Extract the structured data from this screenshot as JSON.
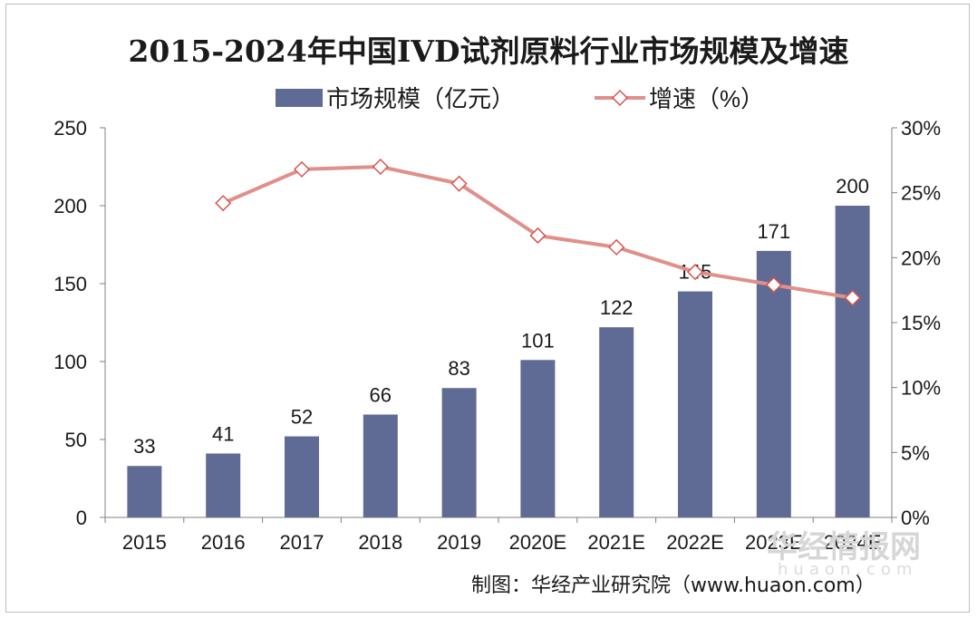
{
  "chart_data": {
    "type": "bar",
    "title": "2015-2024年中国IVD试剂原料行业市场规模及增速",
    "categories": [
      "2015",
      "2016",
      "2017",
      "2018",
      "2019",
      "2020E",
      "2021E",
      "2022E",
      "2023E",
      "2024E"
    ],
    "series": [
      {
        "name": "市场规模（亿元）",
        "type": "bar",
        "axis": "left",
        "values": [
          33,
          41,
          52,
          66,
          83,
          101,
          122,
          145,
          171,
          200
        ],
        "labels": [
          "33",
          "41",
          "52",
          "66",
          "83",
          "101",
          "122",
          "145",
          "171",
          "200"
        ],
        "color": "#5f6b94"
      },
      {
        "name": "增速（%）",
        "type": "line",
        "axis": "right",
        "values": [
          null,
          24.2,
          26.8,
          27.0,
          25.7,
          21.7,
          20.8,
          18.9,
          17.9,
          16.9
        ],
        "color": "#e0908a"
      }
    ],
    "y_left": {
      "range": [
        0,
        250
      ],
      "ticks": [
        "0",
        "50",
        "100",
        "150",
        "200",
        "250"
      ]
    },
    "y_right": {
      "range": [
        0,
        30
      ],
      "ticks": [
        "0%",
        "5%",
        "10%",
        "15%",
        "20%",
        "25%",
        "30%"
      ]
    },
    "legend_position": "top",
    "grid": false
  },
  "source_text": "制图：华经产业研究院（www.huaon.com）",
  "watermark": {
    "cn": "华经情报网",
    "en": "huaon.com"
  }
}
